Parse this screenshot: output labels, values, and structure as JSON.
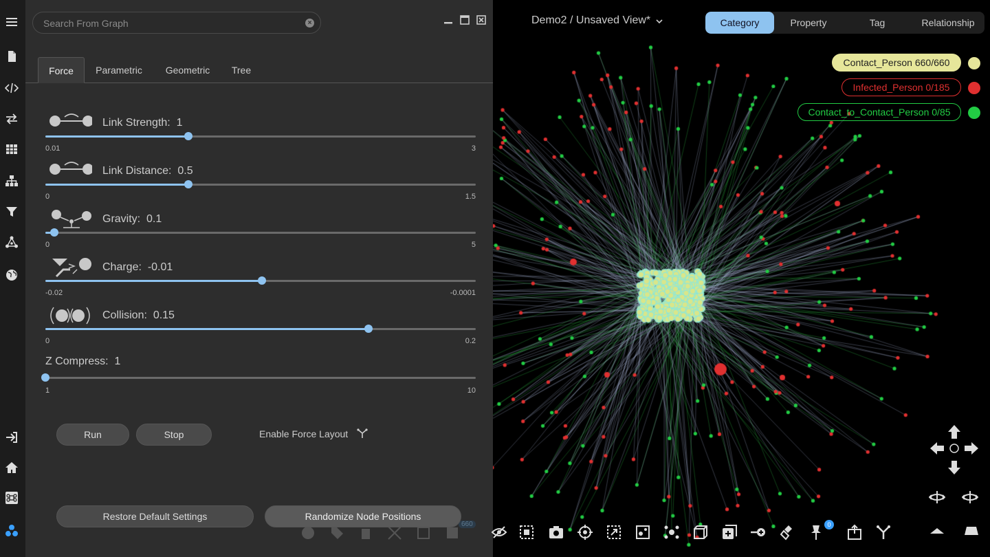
{
  "search": {
    "placeholder": "Search From Graph"
  },
  "tabs": [
    {
      "label": "Force",
      "active": true
    },
    {
      "label": "Parametric"
    },
    {
      "label": "Geometric"
    },
    {
      "label": "Tree"
    }
  ],
  "sliders": [
    {
      "label": "Link Strength:",
      "value": "1",
      "min": "0.01",
      "max": "3",
      "fraction": 0.333
    },
    {
      "label": "Link Distance:",
      "value": "0.5",
      "min": "0",
      "max": "1.5",
      "fraction": 0.333
    },
    {
      "label": "Gravity:",
      "value": "0.1",
      "min": "0",
      "max": "5",
      "fraction": 0.02
    },
    {
      "label": "Charge:",
      "value": "-0.01",
      "min": "-0.02",
      "max": "-0.0001",
      "fraction": 0.503
    },
    {
      "label": "Collision:",
      "value": "0.15",
      "min": "0",
      "max": "0.2",
      "fraction": 0.75
    },
    {
      "label": "Z Compress:",
      "value": "1",
      "min": "1",
      "max": "10",
      "fraction": 0.0
    }
  ],
  "buttons": {
    "run": "Run",
    "stop": "Stop",
    "enable_force": "Enable Force Layout",
    "restore": "Restore Default Settings",
    "randomize": "Randomize Node Positions"
  },
  "ghost_badge": "660",
  "graph": {
    "view_title": "Demo2 / Unsaved View*",
    "segments": [
      {
        "label": "Category",
        "active": true
      },
      {
        "label": "Property"
      },
      {
        "label": "Tag"
      },
      {
        "label": "Relationship"
      }
    ],
    "legend": [
      {
        "label": "Contact_Person 660/660",
        "color": "#e6e69a",
        "filled": true
      },
      {
        "label": "Infected_Person 0/185",
        "color": "#e03030",
        "filled": false
      },
      {
        "label": "Contact_to_Contact_Person 0/85",
        "color": "#22cc44",
        "filled": false
      }
    ],
    "pin_count": "0"
  },
  "colors": {
    "accent": "#8ec3f0",
    "node_core": "#8fe8d8",
    "node_core_fill": "#d9e68a",
    "infected": "#e03030",
    "contact2": "#22cc44",
    "edge": "#aab4d8"
  }
}
